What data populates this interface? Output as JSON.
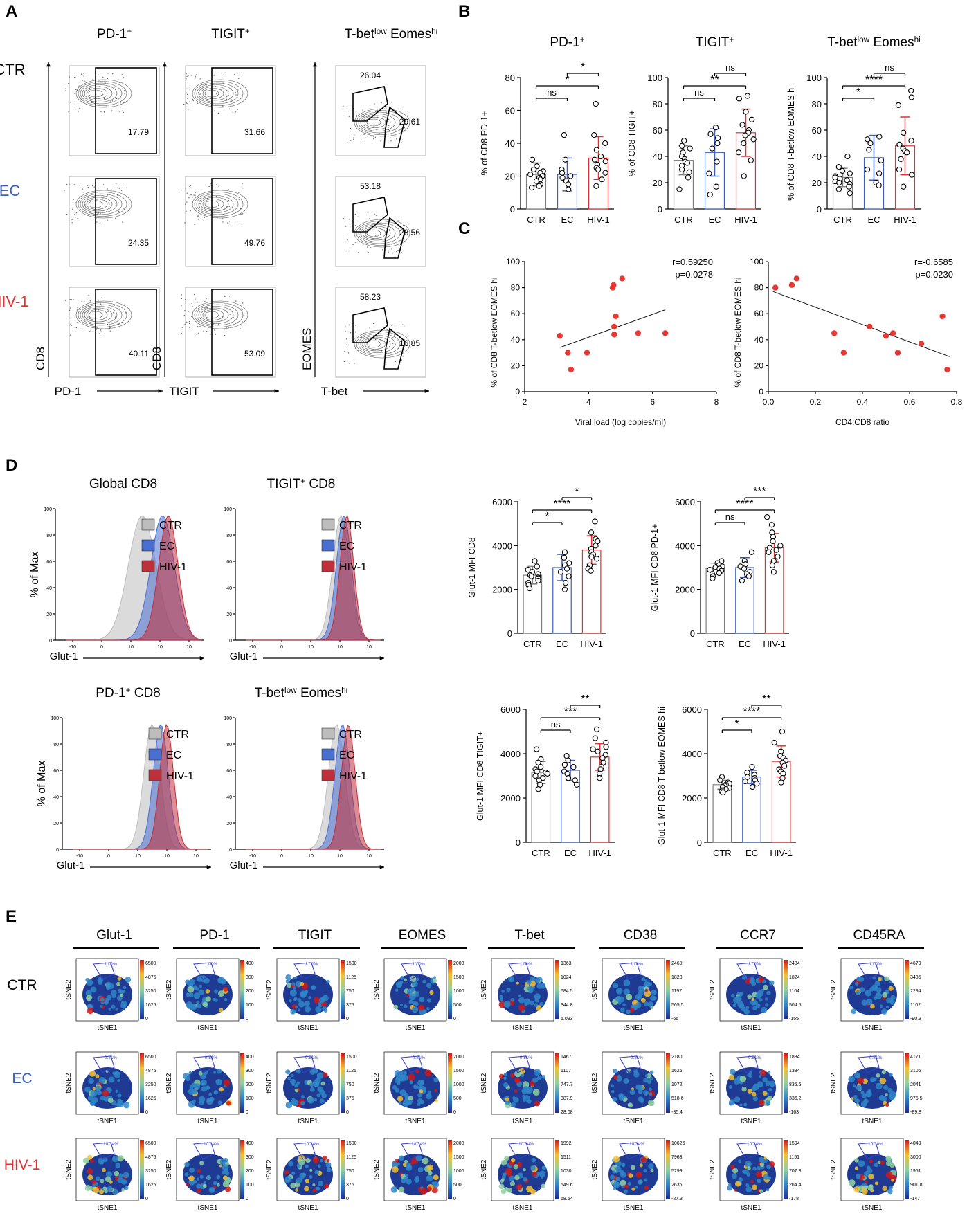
{
  "colors": {
    "ctr": "#7f7f7f",
    "ec": "#3a5fbf",
    "hiv": "#e03030",
    "hist_ctr": "#bdbdbd",
    "hist_ec": "#4a6fd0",
    "hist_hiv": "#c0303a",
    "dot": "#e53935"
  },
  "panel_letters": {
    "a": "A",
    "b": "B",
    "c": "C",
    "d": "D",
    "e": "E"
  },
  "groups": {
    "ctr": "CTR",
    "ec": "EC",
    "hiv": "HIV-1"
  },
  "panelA": {
    "columns": [
      {
        "title_main": "PD-1",
        "title_sup": "+",
        "xlabel": "PD-1",
        "ylabel": "CD8",
        "values": [
          "17.79",
          "24.35",
          "40.11"
        ]
      },
      {
        "title_main": "TIGIT",
        "title_sup": "+",
        "xlabel": "TIGIT",
        "ylabel": "CD8",
        "values": [
          "31.66",
          "49.76",
          "53.09"
        ]
      },
      {
        "title_main": "T-bet",
        "title_sup": "low",
        "title_main2": " Eomes",
        "title_sup2": "hi",
        "xlabel": "T-bet",
        "ylabel": "EOMES",
        "values_top": [
          "26.04",
          "53.18",
          "58.23"
        ],
        "values": [
          "29.61",
          "28.56",
          "16.85"
        ]
      }
    ]
  },
  "chart_data": [
    {
      "type": "bar",
      "panel": "B",
      "title": "PD-1+",
      "ylabel": "% of CD8 PD-1+",
      "ylim": [
        0,
        80
      ],
      "yticks": [
        "0",
        "20",
        "40",
        "60",
        "80"
      ],
      "categories": [
        "CTR",
        "EC",
        "HIV-1"
      ],
      "values": [
        21,
        21,
        31
      ],
      "sd": [
        7,
        10,
        13
      ],
      "points": [
        [
          30,
          26,
          24,
          23,
          22,
          21,
          20,
          19,
          18,
          17,
          15,
          14,
          13
        ],
        [
          45,
          30,
          24,
          22,
          20,
          19,
          17,
          15,
          12
        ],
        [
          64,
          45,
          40,
          36,
          32,
          30,
          29,
          27,
          25,
          24,
          22,
          18,
          14
        ]
      ],
      "sig": [
        {
          "from": 0,
          "to": 1,
          "label": "ns"
        },
        {
          "from": 0,
          "to": 2,
          "label": "*"
        },
        {
          "from": 1,
          "to": 2,
          "label": "*"
        }
      ]
    },
    {
      "type": "bar",
      "panel": "B",
      "title": "TIGIT+",
      "ylabel": "% of CD8 TIGIT+",
      "ylim": [
        0,
        100
      ],
      "yticks": [
        "0",
        "20",
        "40",
        "60",
        "80",
        "100"
      ],
      "categories": [
        "CTR",
        "EC",
        "HIV-1"
      ],
      "values": [
        37,
        43,
        58
      ],
      "sd": [
        11,
        18,
        18
      ],
      "points": [
        [
          52,
          48,
          46,
          43,
          40,
          38,
          36,
          35,
          33,
          30,
          28,
          24,
          15
        ],
        [
          62,
          57,
          54,
          50,
          46,
          36,
          27,
          17,
          11
        ],
        [
          86,
          84,
          74,
          68,
          64,
          60,
          58,
          56,
          53,
          50,
          43,
          37,
          25
        ]
      ],
      "sig": [
        {
          "from": 0,
          "to": 1,
          "label": "ns"
        },
        {
          "from": 0,
          "to": 2,
          "label": "**"
        },
        {
          "from": 1,
          "to": 2,
          "label": "ns"
        }
      ]
    },
    {
      "type": "bar",
      "panel": "B",
      "title": "T-betlow Eomeshi",
      "ylabel": "% of CD8 T-betlow EOMES hi",
      "ylim": [
        0,
        100
      ],
      "yticks": [
        "0",
        "20",
        "40",
        "60",
        "80",
        "100"
      ],
      "categories": [
        "CTR",
        "EC",
        "HIV-1"
      ],
      "values": [
        24,
        39,
        48
      ],
      "sd": [
        7,
        17,
        22
      ],
      "points": [
        [
          40,
          32,
          29,
          27,
          25,
          24,
          23,
          22,
          21,
          20,
          19,
          17,
          15,
          12
        ],
        [
          55,
          53,
          50,
          45,
          37,
          30,
          27,
          20,
          18
        ],
        [
          90,
          85,
          79,
          58,
          52,
          49,
          46,
          44,
          43,
          38,
          30,
          26,
          17
        ]
      ],
      "sig": [
        {
          "from": 0,
          "to": 1,
          "label": "*"
        },
        {
          "from": 0,
          "to": 2,
          "label": "****"
        },
        {
          "from": 1,
          "to": 2,
          "label": "ns"
        }
      ]
    },
    {
      "type": "scatter",
      "panel": "C",
      "xlabel": "Viral load (log copies/ml)",
      "ylabel": "% of CD8 T-betlow EOMES hi",
      "xlim": [
        2,
        8
      ],
      "ylim": [
        0,
        100
      ],
      "xticks": [
        "2",
        "4",
        "6",
        "8"
      ],
      "yticks": [
        "0",
        "20",
        "40",
        "60",
        "80",
        "100"
      ],
      "annotation": [
        "r=0.59250",
        "p=0.0278"
      ],
      "x": [
        3.1,
        3.35,
        3.45,
        3.95,
        4.75,
        4.78,
        4.85,
        5.05,
        4.8,
        5.55,
        6.4,
        4.8
      ],
      "y": [
        43,
        30,
        17,
        30,
        80,
        82,
        58,
        87,
        50,
        45,
        45,
        44
      ],
      "fit": [
        [
          3.1,
          34
        ],
        [
          6.4,
          63
        ]
      ]
    },
    {
      "type": "scatter",
      "panel": "C",
      "xlabel": "CD4:CD8 ratio",
      "ylabel": "% of CD8 T-betlow EOMES hi",
      "xlim": [
        0,
        0.8
      ],
      "ylim": [
        0,
        100
      ],
      "xticks": [
        "0.0",
        "0.2",
        "0.4",
        "0.6",
        "0.8"
      ],
      "yticks": [
        "0",
        "20",
        "40",
        "60",
        "80",
        "100"
      ],
      "annotation": [
        "r=-0.6585",
        "p=0.0230"
      ],
      "x": [
        0.03,
        0.1,
        0.12,
        0.28,
        0.32,
        0.43,
        0.5,
        0.53,
        0.55,
        0.65,
        0.74,
        0.76
      ],
      "y": [
        80,
        82,
        87,
        45,
        30,
        50,
        43,
        45,
        30,
        37,
        58,
        17
      ],
      "fit": [
        [
          0.02,
          77
        ],
        [
          0.77,
          27
        ]
      ]
    },
    {
      "type": "bar",
      "panel": "D",
      "ylabel": "Glut-1 MFI CD8",
      "ylim": [
        0,
        6000
      ],
      "yticks": [
        "0",
        "2000",
        "4000",
        "6000"
      ],
      "categories": [
        "CTR",
        "EC",
        "HIV-1"
      ],
      "values": [
        2650,
        3000,
        3800
      ],
      "sd": [
        400,
        600,
        650
      ],
      "points": [
        [
          3300,
          3050,
          2900,
          2800,
          2700,
          2650,
          2600,
          2550,
          2500,
          2400,
          2300,
          2200,
          2050
        ],
        [
          3700,
          3450,
          3200,
          3100,
          2950,
          2800,
          2600,
          2300,
          2000
        ],
        [
          5100,
          4600,
          4300,
          4200,
          4000,
          3850,
          3700,
          3600,
          3500,
          3400,
          3100,
          2950,
          2850
        ]
      ],
      "sig": [
        {
          "from": 0,
          "to": 1,
          "label": "*"
        },
        {
          "from": 0,
          "to": 2,
          "label": "****"
        },
        {
          "from": 1,
          "to": 2,
          "label": "*"
        }
      ]
    },
    {
      "type": "bar",
      "panel": "D",
      "ylabel": "Glut-1 MFI CD8 PD-1+",
      "ylim": [
        0,
        6000
      ],
      "yticks": [
        "0",
        "2000",
        "4000",
        "6000"
      ],
      "categories": [
        "CTR",
        "EC",
        "HIV-1"
      ],
      "values": [
        2950,
        3000,
        3900
      ],
      "sd": [
        250,
        450,
        650
      ],
      "points": [
        [
          3300,
          3200,
          3100,
          3050,
          3000,
          2950,
          2900,
          2850,
          2800,
          2750,
          2700,
          2600,
          2500
        ],
        [
          3700,
          3300,
          3150,
          3050,
          2950,
          2800,
          2700,
          2600,
          2400
        ],
        [
          5300,
          4950,
          4600,
          4400,
          4200,
          4000,
          3900,
          3800,
          3700,
          3500,
          3300,
          3100,
          2800
        ]
      ],
      "sig": [
        {
          "from": 0,
          "to": 1,
          "label": "ns"
        },
        {
          "from": 0,
          "to": 2,
          "label": "****"
        },
        {
          "from": 1,
          "to": 2,
          "label": "***"
        }
      ]
    },
    {
      "type": "bar",
      "panel": "D",
      "ylabel": "Glut-1 MFI CD8 TIGIT+",
      "ylim": [
        0,
        6000
      ],
      "yticks": [
        "0",
        "2000",
        "4000",
        "6000"
      ],
      "categories": [
        "CTR",
        "EC",
        "HIV-1"
      ],
      "values": [
        3150,
        3250,
        3850
      ],
      "sd": [
        500,
        450,
        600
      ],
      "points": [
        [
          4200,
          3750,
          3600,
          3400,
          3300,
          3200,
          3150,
          3100,
          3000,
          2900,
          2800,
          2600,
          2400
        ],
        [
          3900,
          3700,
          3500,
          3400,
          3200,
          3100,
          2900,
          2800,
          2600
        ],
        [
          5100,
          4700,
          4500,
          4300,
          4200,
          4100,
          3950,
          3800,
          3600,
          3400,
          3300,
          3100,
          2900
        ]
      ],
      "sig": [
        {
          "from": 0,
          "to": 1,
          "label": "ns"
        },
        {
          "from": 0,
          "to": 2,
          "label": "***"
        },
        {
          "from": 1,
          "to": 2,
          "label": "**"
        }
      ]
    },
    {
      "type": "bar",
      "panel": "D",
      "ylabel": "Glut-1 MFI CD8 T-betlow EOMES hi",
      "ylim": [
        0,
        6000
      ],
      "yticks": [
        "0",
        "2000",
        "4000",
        "6000"
      ],
      "categories": [
        "CTR",
        "EC",
        "HIV-1"
      ],
      "values": [
        2600,
        2950,
        3650
      ],
      "sd": [
        200,
        300,
        700
      ],
      "points": [
        [
          2950,
          2800,
          2700,
          2650,
          2600,
          2550,
          2500,
          2450,
          2400,
          2350,
          2300,
          2250
        ],
        [
          3400,
          3150,
          3050,
          2950,
          2900,
          2800,
          2750,
          2650,
          2500
        ],
        [
          5000,
          4500,
          4100,
          3900,
          3800,
          3700,
          3600,
          3450,
          3300,
          3200,
          3100,
          2900,
          2700
        ]
      ],
      "sig": [
        {
          "from": 0,
          "to": 1,
          "label": "*"
        },
        {
          "from": 0,
          "to": 2,
          "label": "****"
        },
        {
          "from": 1,
          "to": 2,
          "label": "**"
        }
      ]
    }
  ],
  "panelD_hist": [
    {
      "title": "Global CD8",
      "xlabel": "Glut-1",
      "ylabel": "% of Max",
      "peaks": [
        2.6,
        3.3,
        3.5
      ]
    },
    {
      "title_main": "TIGIT",
      "title_sup": "+",
      "title_rest": " CD8",
      "xlabel": "Glut-1",
      "ylabel": "",
      "peaks": [
        3.25,
        3.35,
        3.45
      ]
    },
    {
      "title_main": "PD-1",
      "title_sup": "+",
      "title_rest": " CD8",
      "xlabel": "Glut-1",
      "ylabel": "% of Max",
      "peaks": [
        2.7,
        3.0,
        3.2
      ]
    },
    {
      "title_main": "T-bet",
      "title_sup": "low",
      "title_rest": " Eomes",
      "title_sup2": "hi",
      "xlabel": "Glut-1",
      "ylabel": "",
      "peaks": [
        3.1,
        3.3,
        3.5
      ]
    }
  ],
  "hist_axis": {
    "yticks": [
      "0",
      "20",
      "40",
      "60",
      "80",
      "100"
    ],
    "xticks": [
      "-10",
      "0",
      "10",
      "10",
      "10"
    ]
  },
  "panelE": {
    "markers": [
      "Glut-1",
      "PD-1",
      "TIGIT",
      "EOMES",
      "T-bet",
      "CD38",
      "CCR7",
      "CD45RA"
    ],
    "axis_x": "tSNE1",
    "axis_y": "tSNE2",
    "gate": [
      "1.00%",
      "0.81%",
      "10.34%"
    ],
    "scales": {
      "CTR": [
        [
          "6500",
          "4875",
          "3250",
          "1625",
          "0"
        ],
        [
          "400",
          "300",
          "200",
          "100",
          "0"
        ],
        [
          "1500",
          "1125",
          "750",
          "375",
          "0"
        ],
        [
          "2000",
          "1500",
          "1000",
          "500",
          "0"
        ],
        [
          "1363",
          "1024",
          "684.5",
          "344.8",
          "5.093"
        ],
        [
          "2460",
          "1828",
          "1197",
          "565.5",
          "-66"
        ],
        [
          "2484",
          "1824",
          "1164",
          "504.5",
          "-155"
        ],
        [
          "4679",
          "3486",
          "2294",
          "1102",
          "-90.3"
        ]
      ],
      "EC": [
        [
          "6500",
          "4875",
          "3250",
          "1625",
          "0"
        ],
        [
          "400",
          "300",
          "200",
          "100",
          "0"
        ],
        [
          "1500",
          "1125",
          "750",
          "375",
          "0"
        ],
        [
          "2000",
          "1500",
          "1000",
          "500",
          "0"
        ],
        [
          "1467",
          "1107",
          "747.7",
          "387.9",
          "28.08"
        ],
        [
          "2180",
          "1626",
          "1072",
          "518.6",
          "-35.4"
        ],
        [
          "1834",
          "1334",
          "835.6",
          "336.2",
          "-163"
        ],
        [
          "4171",
          "3106",
          "2041",
          "975.5",
          "-89.8"
        ]
      ],
      "HIV-1": [
        [
          "6500",
          "4875",
          "3250",
          "1625",
          "0"
        ],
        [
          "400",
          "300",
          "200",
          "100",
          "0"
        ],
        [
          "1500",
          "1125",
          "750",
          "375",
          "0"
        ],
        [
          "2000",
          "1500",
          "1000",
          "500",
          "0"
        ],
        [
          "1992",
          "1511",
          "1030",
          "549.6",
          "68.54"
        ],
        [
          "10626",
          "7963",
          "5299",
          "2636",
          "-27.3"
        ],
        [
          "1594",
          "1151",
          "707.8",
          "264.4",
          "-178"
        ],
        [
          "4049",
          "3000",
          "1951",
          "901.8",
          "-147"
        ]
      ]
    }
  }
}
